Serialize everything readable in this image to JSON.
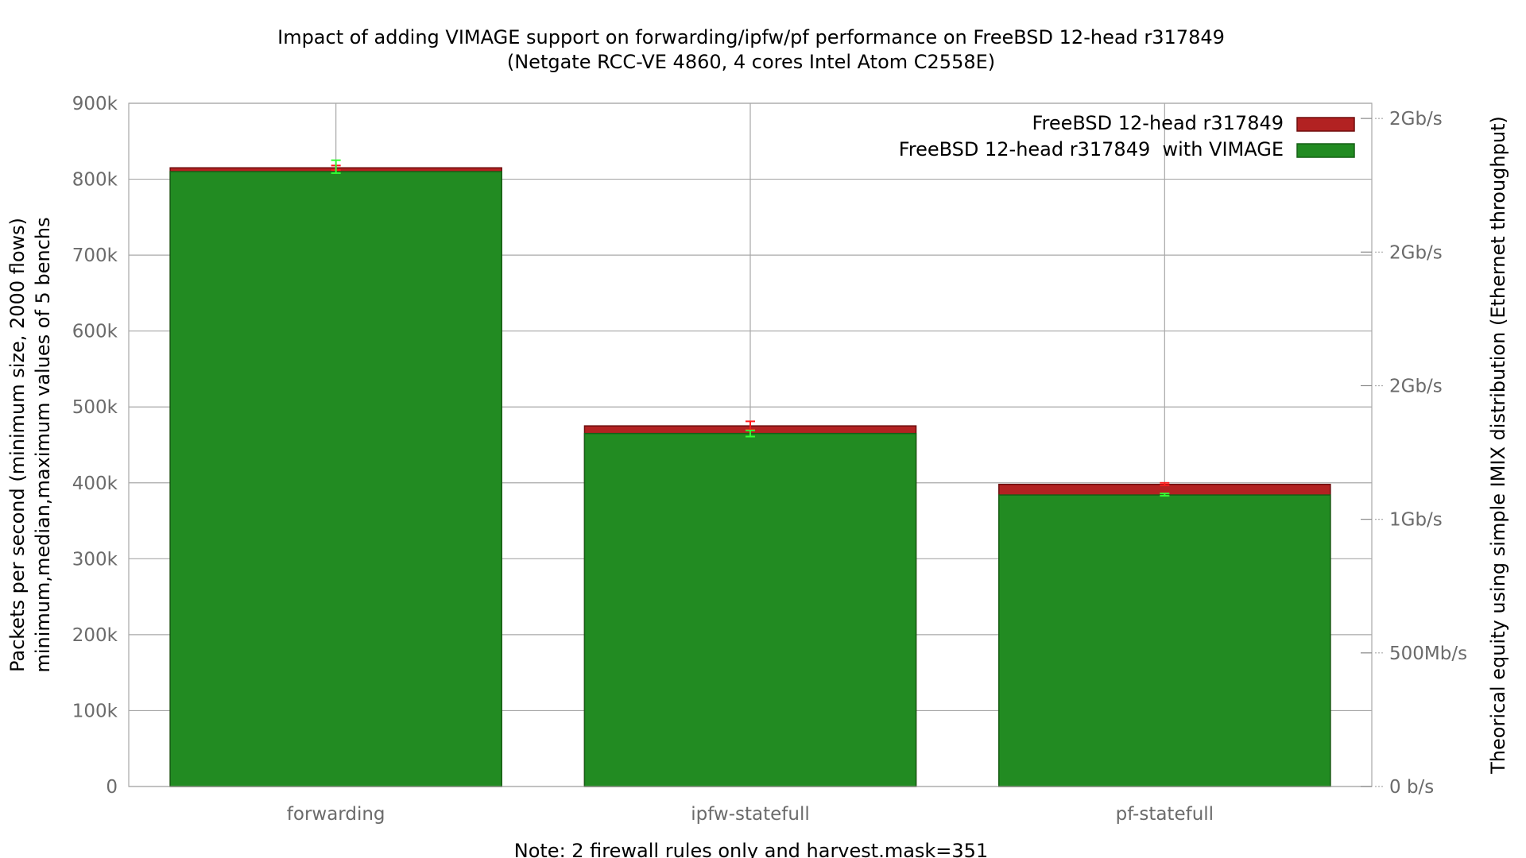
{
  "chart_data": {
    "type": "bar",
    "title": "Impact of adding VIMAGE support on forwarding/ipfw/pf performance on FreeBSD 12-head r317849",
    "subtitle": "(Netgate RCC-VE 4860, 4 cores Intel Atom C2558E)",
    "ylabel_lines": [
      "Packets per second (minimum size, 2000 flows)",
      "minimum,median,maximum values of 5 benchs"
    ],
    "y2label": "Theorical equity using simple IMIX distribution (Ethernet throughput)",
    "xlabel": "Note: 2 firewall rules only and harvest.mask=351",
    "categories": [
      "forwarding",
      "ipfw-statefull",
      "pf-statefull"
    ],
    "ylim": [
      0,
      900000
    ],
    "yticks": [
      {
        "value": 0,
        "label": "0"
      },
      {
        "value": 100000,
        "label": "100k"
      },
      {
        "value": 200000,
        "label": "200k"
      },
      {
        "value": 300000,
        "label": "300k"
      },
      {
        "value": 400000,
        "label": "400k"
      },
      {
        "value": 500000,
        "label": "500k"
      },
      {
        "value": 600000,
        "label": "600k"
      },
      {
        "value": 700000,
        "label": "700k"
      },
      {
        "value": 800000,
        "label": "800k"
      },
      {
        "value": 900000,
        "label": "900k"
      }
    ],
    "y2ticks": [
      {
        "value": 0,
        "label": "0 b/s"
      },
      {
        "value": 176000,
        "label": "500Mb/s"
      },
      {
        "value": 352000,
        "label": "1Gb/s"
      },
      {
        "value": 528000,
        "label": "2Gb/s"
      },
      {
        "value": 704000,
        "label": "2Gb/s"
      },
      {
        "value": 880000,
        "label": "2Gb/s"
      }
    ],
    "grid": true,
    "legend_position": "top-right",
    "series": [
      {
        "name": "FreeBSD 12-head r317849",
        "color": "#b22222",
        "values": [
          815000,
          475000,
          398000
        ],
        "min": [
          812000,
          470000,
          397000
        ],
        "max": [
          818000,
          481000,
          400000
        ]
      },
      {
        "name": "FreeBSD 12-head r317849  with VIMAGE",
        "color": "#228b22",
        "values": [
          810000,
          465000,
          384000
        ],
        "min": [
          808000,
          461000,
          383000
        ],
        "max": [
          825000,
          469000,
          386000
        ]
      }
    ]
  }
}
